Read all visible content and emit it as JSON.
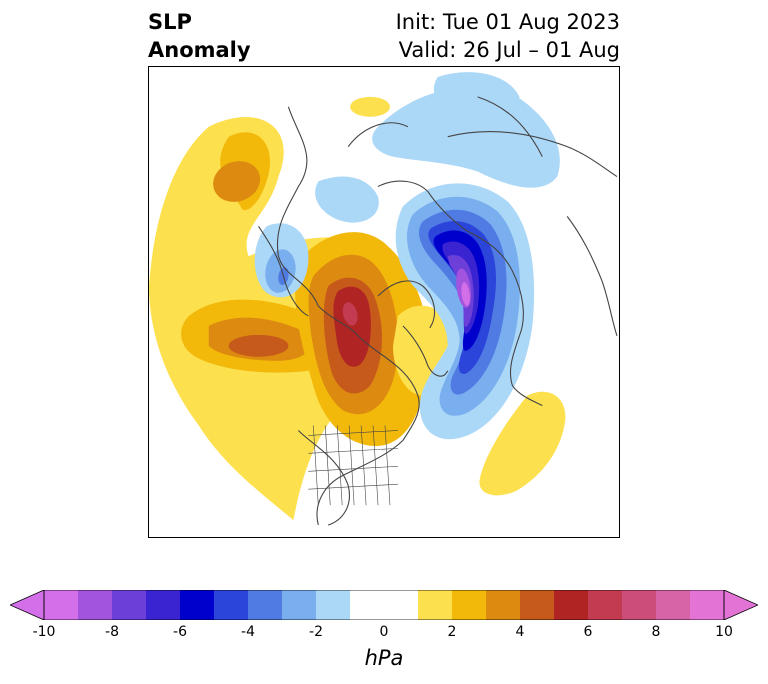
{
  "title": {
    "left_line1": "SLP",
    "left_line2": "Anomaly",
    "right_line1": "Init: Tue 01 Aug 2023",
    "right_line2": "Valid: 26 Jul – 01 Aug"
  },
  "colorbar": {
    "units": "hPa",
    "tick_labels": [
      "-10",
      "-8",
      "-6",
      "-4",
      "-2",
      "0",
      "2",
      "4",
      "6",
      "8",
      "10"
    ],
    "bins": [
      {
        "from": -10,
        "to": -9,
        "color": "#d36fe8"
      },
      {
        "from": -9,
        "to": -8,
        "color": "#a254df"
      },
      {
        "from": -8,
        "to": -7,
        "color": "#6c3fd8"
      },
      {
        "from": -7,
        "to": -6,
        "color": "#3a23d0"
      },
      {
        "from": -6,
        "to": -5,
        "color": "#0000cd"
      },
      {
        "from": -5,
        "to": -4,
        "color": "#2b44d9"
      },
      {
        "from": -4,
        "to": -3,
        "color": "#4f7be3"
      },
      {
        "from": -3,
        "to": -2,
        "color": "#7aafef"
      },
      {
        "from": -2,
        "to": -1,
        "color": "#acd8f8"
      },
      {
        "from": -1,
        "to": 1,
        "color": "#ffffff"
      },
      {
        "from": 1,
        "to": 2,
        "color": "#fde04d"
      },
      {
        "from": 2,
        "to": 3,
        "color": "#f2b90b"
      },
      {
        "from": 3,
        "to": 4,
        "color": "#dd8a10"
      },
      {
        "from": 4,
        "to": 5,
        "color": "#c55a1a"
      },
      {
        "from": 5,
        "to": 6,
        "color": "#b02424"
      },
      {
        "from": 6,
        "to": 7,
        "color": "#c23b51"
      },
      {
        "from": 7,
        "to": 8,
        "color": "#cc4d79"
      },
      {
        "from": 8,
        "to": 9,
        "color": "#d764a7"
      },
      {
        "from": 9,
        "to": 10,
        "color": "#e374d6"
      }
    ],
    "extend_low_color": "#d36fe8",
    "extend_high_color": "#e374d6"
  },
  "map": {
    "projection": "north-polar-stereographic",
    "features": [
      {
        "name": "north-pacific-high-anomaly",
        "value_hpa": 3.5
      },
      {
        "name": "north-america-high-anomaly",
        "value_hpa": 5.5
      },
      {
        "name": "canada-arctic-high-anomaly",
        "value_hpa": 2.5
      },
      {
        "name": "north-atlantic-low-anomaly",
        "value_hpa": -9.5
      },
      {
        "name": "east-asia-low-anomaly",
        "value_hpa": -2.5
      },
      {
        "name": "siberia-low-anomaly",
        "value_hpa": -1.5
      },
      {
        "name": "azores-high-anomaly",
        "value_hpa": 1.5
      }
    ]
  }
}
